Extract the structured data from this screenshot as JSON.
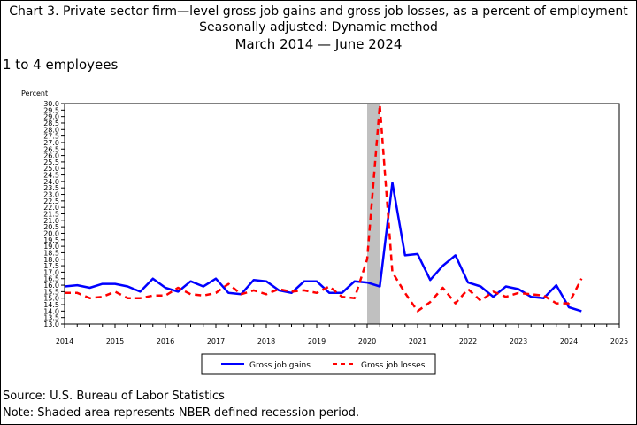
{
  "header": {
    "title": "Chart 3. Private sector firm—level gross job gains and gross job losses, as a percent of employment",
    "adjustment": "Seasonally adjusted: Dynamic method",
    "range_start": "March 2014",
    "range_end": "June 2024"
  },
  "subtitle": "1 to 4 employees",
  "footer": {
    "source": "Source: U.S. Bureau of Labor Statistics",
    "note": "Note: Shaded area represents NBER defined recession period."
  },
  "chart_data": {
    "type": "line",
    "ylabel": "Percent",
    "xlim": [
      2014,
      2025
    ],
    "ylim": [
      13.0,
      30.0
    ],
    "y_ticks": [
      13.0,
      13.5,
      14.0,
      14.5,
      15.0,
      15.5,
      16.0,
      16.5,
      17.0,
      17.5,
      18.0,
      18.5,
      19.0,
      19.5,
      20.0,
      20.5,
      21.0,
      21.5,
      22.0,
      22.5,
      23.0,
      23.5,
      24.0,
      24.5,
      25.0,
      25.5,
      26.0,
      26.5,
      27.0,
      27.5,
      28.0,
      28.5,
      29.0,
      29.5,
      30.0
    ],
    "x_ticks": [
      "2014",
      "2015",
      "2016",
      "2017",
      "2018",
      "2019",
      "2020",
      "2021",
      "2022",
      "2023",
      "2024",
      "2025"
    ],
    "recession": {
      "start": 2020.0,
      "end": 2020.25,
      "color": "#c0c0c0"
    },
    "legend_placement": "bottom-center",
    "x": [
      2014.0,
      2014.25,
      2014.5,
      2014.75,
      2015.0,
      2015.25,
      2015.5,
      2015.75,
      2016.0,
      2016.25,
      2016.5,
      2016.75,
      2017.0,
      2017.25,
      2017.5,
      2017.75,
      2018.0,
      2018.25,
      2018.5,
      2018.75,
      2019.0,
      2019.25,
      2019.5,
      2019.75,
      2020.0,
      2020.25,
      2020.5,
      2020.75,
      2021.0,
      2021.25,
      2021.5,
      2021.75,
      2022.0,
      2022.25,
      2022.5,
      2022.75,
      2023.0,
      2023.25,
      2023.5,
      2023.75,
      2024.0,
      2024.25
    ],
    "series": [
      {
        "name": "Gross job gains",
        "color": "#0000ff",
        "dash": "solid",
        "values": [
          15.9,
          16.0,
          15.8,
          16.1,
          16.1,
          15.9,
          15.5,
          16.5,
          15.8,
          15.5,
          16.3,
          15.9,
          16.5,
          15.4,
          15.3,
          16.4,
          16.3,
          15.6,
          15.4,
          16.3,
          16.3,
          15.4,
          15.4,
          16.3,
          16.2,
          15.9,
          23.9,
          18.3,
          18.4,
          16.4,
          17.5,
          18.3,
          16.2,
          15.9,
          15.1,
          15.9,
          15.7,
          15.1,
          15.0,
          16.0,
          14.3,
          14.0
        ]
      },
      {
        "name": "Gross job losses",
        "color": "#ff0000",
        "dash": "dashed",
        "values": [
          15.4,
          15.4,
          15.0,
          15.1,
          15.5,
          15.0,
          15.0,
          15.2,
          15.2,
          15.8,
          15.3,
          15.2,
          15.4,
          16.1,
          15.3,
          15.6,
          15.3,
          15.7,
          15.5,
          15.6,
          15.4,
          15.9,
          15.1,
          15.0,
          18.0,
          29.9,
          17.0,
          15.4,
          14.0,
          14.7,
          15.8,
          14.6,
          15.7,
          14.8,
          15.5,
          15.1,
          15.4,
          15.3,
          15.2,
          14.6,
          14.6,
          16.5
        ]
      }
    ]
  }
}
